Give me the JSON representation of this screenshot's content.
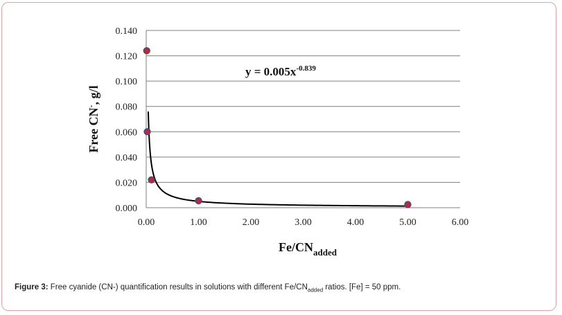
{
  "chart_data": {
    "type": "scatter",
    "x": [
      0.01,
      0.02,
      0.1,
      1.0,
      5.0
    ],
    "y": [
      0.124,
      0.06,
      0.022,
      0.0055,
      0.0025
    ],
    "xlim": [
      0,
      6
    ],
    "ylim": [
      0,
      0.14
    ],
    "x_ticks": [
      "0.00",
      "1.00",
      "2.00",
      "3.00",
      "4.00",
      "5.00",
      "6.00"
    ],
    "y_ticks": [
      "0.000",
      "0.020",
      "0.040",
      "0.060",
      "0.080",
      "0.100",
      "0.120",
      "0.140"
    ],
    "ylabel": {
      "main": "Free CN",
      "sup": "-",
      "rest": ", g/l"
    },
    "xlabel": {
      "main": "Fe/CN",
      "sub": "added"
    },
    "trendline": {
      "type": "power",
      "a": 0.005,
      "b": -0.839
    },
    "equation": {
      "main": "y = 0.005x",
      "sup": "-0.839"
    },
    "grid": "horizontal",
    "colors": {
      "marker": "#c0282d",
      "marker_edge": "#3b4a9a",
      "trend": "#000000",
      "grid": "#7f7f7f"
    }
  },
  "caption": {
    "lead": "Figure 3:",
    "text_before": " Free cyanide (CN-) quantification results in solutions with different Fe/CN",
    "sub": "added",
    "text_after": " ratios. [Fe] = 50 ppm."
  }
}
